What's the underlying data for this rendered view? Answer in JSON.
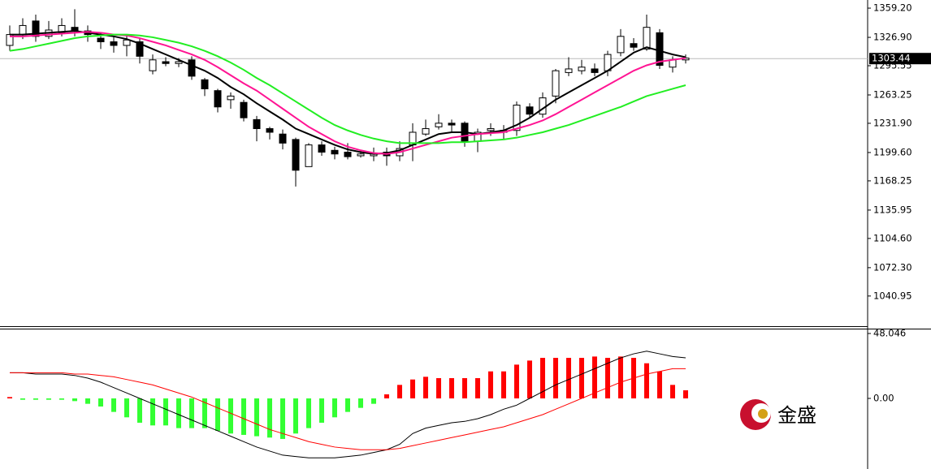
{
  "chart_data": [
    {
      "type": "candlestick",
      "open": [
        1318,
        1330,
        1345,
        1328,
        1332,
        1338,
        1334,
        1326,
        1322,
        1318,
        1322,
        1290,
        1300,
        1298,
        1302,
        1280,
        1268,
        1258,
        1255,
        1236,
        1226,
        1220,
        1214,
        1184,
        1208,
        1202,
        1200,
        1196,
        1196,
        1200,
        1196,
        1208,
        1220,
        1228,
        1232,
        1232,
        1212,
        1224,
        1222,
        1224,
        1250,
        1242,
        1262,
        1288,
        1290,
        1292,
        1290,
        1310,
        1320,
        1314,
        1332,
        1294,
        1302
      ],
      "high": [
        1340,
        1348,
        1352,
        1345,
        1348,
        1358,
        1340,
        1332,
        1328,
        1330,
        1326,
        1308,
        1305,
        1304,
        1306,
        1282,
        1270,
        1266,
        1258,
        1240,
        1228,
        1225,
        1216,
        1210,
        1212,
        1206,
        1210,
        1202,
        1205,
        1205,
        1212,
        1232,
        1236,
        1242,
        1236,
        1234,
        1226,
        1232,
        1230,
        1256,
        1254,
        1266,
        1292,
        1305,
        1302,
        1298,
        1312,
        1336,
        1326,
        1352,
        1336,
        1306,
        1308
      ],
      "low": [
        1312,
        1325,
        1322,
        1325,
        1328,
        1328,
        1322,
        1314,
        1310,
        1306,
        1298,
        1286,
        1295,
        1294,
        1280,
        1262,
        1244,
        1248,
        1234,
        1212,
        1214,
        1203,
        1162,
        1184,
        1196,
        1192,
        1192,
        1194,
        1190,
        1185,
        1190,
        1190,
        1218,
        1225,
        1222,
        1206,
        1200,
        1218,
        1214,
        1218,
        1238,
        1238,
        1254,
        1284,
        1286,
        1284,
        1284,
        1306,
        1312,
        1312,
        1292,
        1288,
        1298
      ],
      "close": [
        1330,
        1340,
        1328,
        1335,
        1340,
        1334,
        1330,
        1322,
        1318,
        1324,
        1306,
        1302,
        1298,
        1300,
        1284,
        1270,
        1250,
        1262,
        1238,
        1226,
        1222,
        1210,
        1180,
        1208,
        1200,
        1198,
        1195,
        1198,
        1199,
        1196,
        1204,
        1222,
        1226,
        1232,
        1230,
        1212,
        1222,
        1226,
        1224,
        1252,
        1242,
        1260,
        1290,
        1292,
        1294,
        1288,
        1308,
        1328,
        1316,
        1338,
        1296,
        1302,
        1304
      ],
      "up_color": "#ffffff",
      "down_color": "#000000",
      "series": [
        {
          "color": "#000000",
          "values": [
            1330,
            1330,
            1331,
            1332,
            1333,
            1334,
            1332,
            1330,
            1328,
            1325,
            1320,
            1314,
            1308,
            1302,
            1296,
            1290,
            1282,
            1272,
            1264,
            1254,
            1245,
            1236,
            1226,
            1220,
            1214,
            1208,
            1203,
            1200,
            1198,
            1199,
            1202,
            1208,
            1214,
            1220,
            1222,
            1222,
            1220,
            1222,
            1224,
            1230,
            1238,
            1248,
            1258,
            1266,
            1274,
            1282,
            1290,
            1300,
            1310,
            1316,
            1312,
            1308,
            1305
          ]
        },
        {
          "color": "#ff1493",
          "values": [
            1328,
            1328,
            1329,
            1330,
            1331,
            1332,
            1333,
            1332,
            1330,
            1329,
            1326,
            1322,
            1318,
            1313,
            1308,
            1302,
            1294,
            1285,
            1276,
            1268,
            1258,
            1248,
            1238,
            1228,
            1220,
            1212,
            1206,
            1202,
            1199,
            1198,
            1200,
            1204,
            1208,
            1212,
            1216,
            1218,
            1220,
            1221,
            1222,
            1226,
            1230,
            1235,
            1242,
            1250,
            1258,
            1266,
            1274,
            1282,
            1290,
            1296,
            1300,
            1302,
            1304
          ]
        },
        {
          "color": "#22ee22",
          "values": [
            1312,
            1314,
            1317,
            1320,
            1323,
            1326,
            1328,
            1329,
            1330,
            1330,
            1329,
            1327,
            1324,
            1321,
            1317,
            1312,
            1306,
            1299,
            1291,
            1282,
            1274,
            1265,
            1256,
            1247,
            1238,
            1230,
            1224,
            1219,
            1215,
            1212,
            1210,
            1210,
            1210,
            1210,
            1211,
            1211,
            1212,
            1213,
            1214,
            1216,
            1219,
            1222,
            1226,
            1230,
            1235,
            1240,
            1245,
            1250,
            1256,
            1262,
            1266,
            1270,
            1274
          ]
        }
      ],
      "ylim": [
        1006.7,
        1368.2
      ],
      "yticks": [
        {
          "value": 1359.2,
          "label": "1359.20"
        },
        {
          "value": 1326.9,
          "label": "1326.90"
        },
        {
          "value": 1295.55,
          "label": "1295.55"
        },
        {
          "value": 1263.25,
          "label": "1263.25"
        },
        {
          "value": 1231.9,
          "label": "1231.90"
        },
        {
          "value": 1199.6,
          "label": "1199.60"
        },
        {
          "value": 1168.25,
          "label": "1168.25"
        },
        {
          "value": 1135.95,
          "label": "1135.95"
        },
        {
          "value": 1104.6,
          "label": "1104.60"
        },
        {
          "value": 1072.3,
          "label": "1072.30"
        },
        {
          "value": 1040.95,
          "label": "1040.95"
        }
      ],
      "current_price": {
        "value": 1303.44,
        "label": "1303.44"
      }
    },
    {
      "type": "macd",
      "histogram": [
        1,
        -1,
        -1,
        -1,
        -1,
        -2,
        -4,
        -6,
        -10,
        -14,
        -18,
        -20,
        -20,
        -22,
        -22,
        -22,
        -24,
        -26,
        -27,
        -28,
        -29,
        -30,
        -26,
        -22,
        -18,
        -14,
        -10,
        -7,
        -4,
        3,
        10,
        14,
        16,
        15,
        15,
        15,
        15,
        20,
        20,
        25,
        28,
        30,
        30,
        30,
        30,
        31,
        30,
        31,
        30,
        26,
        20,
        10,
        6
      ],
      "up_color": "#ff0000",
      "down_color": "#33ff33",
      "series": [
        {
          "color": "#000000",
          "values": [
            19,
            19,
            18,
            18,
            18,
            17,
            15,
            12,
            8,
            4,
            0,
            -4,
            -8,
            -12,
            -16,
            -20,
            -24,
            -28,
            -32,
            -36,
            -39,
            -42,
            -43,
            -44,
            -44,
            -44,
            -43,
            -42,
            -40,
            -38,
            -34,
            -26,
            -22,
            -20,
            -18,
            -17,
            -15,
            -12,
            -8,
            -5,
            0,
            5,
            10,
            14,
            18,
            22,
            26,
            30,
            33,
            35,
            33,
            31,
            30
          ]
        },
        {
          "color": "#ff0000",
          "values": [
            19,
            19,
            19,
            19,
            19,
            18,
            18,
            17,
            16,
            14,
            12,
            10,
            7,
            4,
            1,
            -3,
            -7,
            -11,
            -15,
            -19,
            -23,
            -26,
            -29,
            -32,
            -34,
            -36,
            -37,
            -38,
            -38,
            -38,
            -37,
            -35,
            -33,
            -31,
            -29,
            -27,
            -25,
            -23,
            -21,
            -18,
            -15,
            -12,
            -8,
            -4,
            0,
            4,
            8,
            12,
            15,
            18,
            20,
            22,
            22
          ]
        }
      ],
      "ylim": [
        -52.25,
        51.65
      ],
      "yticks": [
        48.046,
        {
          "value": 0,
          "label": "0.00"
        }
      ]
    }
  ],
  "logo": "金盛"
}
